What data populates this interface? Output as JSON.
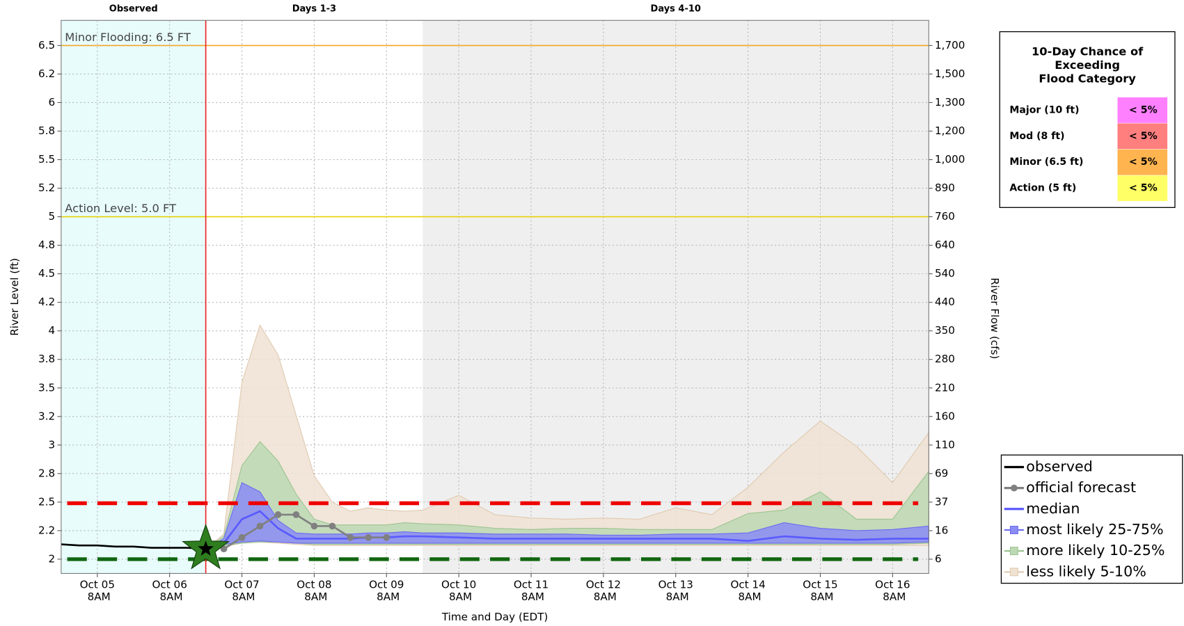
{
  "chart_data": {
    "type": "hydrograph",
    "xlabel": "Time and Day (EDT)",
    "ylabel": "River Level (ft)",
    "y2label": "River Flow (cfs)",
    "xlim": [
      "Oct 04 8PM",
      "Oct 16 8PM"
    ],
    "xticks": [
      "Oct 05 8AM",
      "Oct 06 8AM",
      "Oct 07 8AM",
      "Oct 08 8AM",
      "Oct 09 8AM",
      "Oct 10 8AM",
      "Oct 11 8AM",
      "Oct 12 8AM",
      "Oct 13 8AM",
      "Oct 14 8AM",
      "Oct 15 8AM",
      "Oct 16 8AM"
    ],
    "ylim": [
      1.875,
      6.72
    ],
    "yticks": [
      2.0,
      {
        "value": 2.25,
        "label": "2.2"
      },
      2.5,
      {
        "value": 2.75,
        "label": "2.8"
      },
      3.0,
      {
        "value": 3.25,
        "label": "3.2"
      },
      3.5,
      {
        "value": 3.75,
        "label": "3.8"
      },
      4.0,
      {
        "value": 4.25,
        "label": "4.2"
      },
      4.5,
      {
        "value": 4.75,
        "label": "4.8"
      },
      5.0,
      {
        "value": 5.25,
        "label": "5.2"
      },
      5.5,
      {
        "value": 5.75,
        "label": "5.8"
      },
      6.0,
      {
        "value": 6.25,
        "label": "6.2"
      },
      6.5
    ],
    "y2ticks": [
      6,
      16,
      37,
      69,
      110,
      160,
      210,
      280,
      350,
      440,
      540,
      640,
      760,
      890,
      {
        "value": 1000,
        "label": "1,000"
      },
      {
        "value": 1200,
        "label": "1,200"
      },
      {
        "value": 1300,
        "label": "1,300"
      },
      {
        "value": 1500,
        "label": "1,500"
      },
      {
        "value": 1700,
        "label": "1,700"
      }
    ],
    "grid": true,
    "regions": [
      {
        "label": "Observed",
        "start": "Oct 04 8PM",
        "end": "Oct 06 8PM",
        "color": "#e8fcfc"
      },
      {
        "label": "Days 1-3",
        "start": "Oct 06 8PM",
        "end": "Oct 09 8PM",
        "color": "#ffffff"
      },
      {
        "label": "Days 4-10",
        "start": "Oct 09 8PM",
        "end": "Oct 16 8PM",
        "color": "#efefef"
      }
    ],
    "flood_lines": [
      {
        "label": "Minor Flooding: 6.5 FT",
        "value": 6.5,
        "color": "#f5a623"
      },
      {
        "label": "Action Level: 5.0 FT",
        "value": 5.0,
        "color": "#e8d200"
      }
    ],
    "reference_lines": [
      {
        "value": 2.49,
        "color": "#ee0000"
      },
      {
        "value": 2.0,
        "color": "#116611"
      }
    ],
    "forecast_issued": {
      "x": "Oct 06 8PM",
      "value": 2.09,
      "color": "#2e7d1e"
    },
    "series": [
      {
        "name": "less likely 5-10%",
        "type": "band",
        "color": "#efe2d2",
        "edge": "#e0c9b0",
        "x": [
          "Oct 06 8PM",
          "Oct 07 2AM",
          "Oct 07 8AM",
          "Oct 07 2PM",
          "Oct 07 8PM",
          "Oct 08 2AM",
          "Oct 08 8AM",
          "Oct 08 2PM",
          "Oct 08 8PM",
          "Oct 09 2AM",
          "Oct 09 8AM",
          "Oct 09 2PM",
          "Oct 09 8PM",
          "Oct 10 8AM",
          "Oct 10 8PM",
          "Oct 11 8AM",
          "Oct 11 8PM",
          "Oct 12 8AM",
          "Oct 12 8PM",
          "Oct 13 8AM",
          "Oct 13 8PM",
          "Oct 14 8AM",
          "Oct 14 8PM",
          "Oct 15 8AM",
          "Oct 15 8PM",
          "Oct 16 8AM",
          "Oct 16 8PM"
        ],
        "high": [
          2.09,
          2.22,
          3.55,
          4.05,
          3.79,
          3.26,
          2.73,
          2.5,
          2.42,
          2.45,
          2.43,
          2.42,
          2.43,
          2.56,
          2.39,
          2.36,
          2.35,
          2.36,
          2.35,
          2.45,
          2.39,
          2.63,
          2.94,
          3.21,
          2.99,
          2.67,
          3.11
        ],
        "low": [
          2.09,
          2.11,
          2.14,
          2.15,
          2.14,
          2.13,
          2.12,
          2.12,
          2.12,
          2.12,
          2.12,
          2.12,
          2.12,
          2.12,
          2.12,
          2.12,
          2.12,
          2.12,
          2.12,
          2.12,
          2.12,
          2.12,
          2.12,
          2.12,
          2.12,
          2.12,
          2.12
        ]
      },
      {
        "name": "more likely 10-25%",
        "type": "band",
        "color": "#bcd8b4",
        "edge": "#9cc490",
        "x": [
          "Oct 06 8PM",
          "Oct 07 2AM",
          "Oct 07 8AM",
          "Oct 07 2PM",
          "Oct 07 8PM",
          "Oct 08 2AM",
          "Oct 08 8AM",
          "Oct 08 2PM",
          "Oct 08 8PM",
          "Oct 09 2AM",
          "Oct 09 8AM",
          "Oct 09 2PM",
          "Oct 09 8PM",
          "Oct 10 8AM",
          "Oct 10 8PM",
          "Oct 11 8AM",
          "Oct 11 8PM",
          "Oct 12 8AM",
          "Oct 12 8PM",
          "Oct 13 8AM",
          "Oct 13 8PM",
          "Oct 14 8AM",
          "Oct 14 8PM",
          "Oct 15 8AM",
          "Oct 15 8PM",
          "Oct 16 8AM",
          "Oct 16 8PM"
        ],
        "high": [
          2.09,
          2.2,
          2.82,
          3.03,
          2.86,
          2.57,
          2.35,
          2.3,
          2.3,
          2.3,
          2.3,
          2.32,
          2.31,
          2.3,
          2.27,
          2.26,
          2.27,
          2.27,
          2.26,
          2.26,
          2.26,
          2.4,
          2.43,
          2.59,
          2.35,
          2.35,
          2.77
        ],
        "low": [
          2.09,
          2.12,
          2.14,
          2.15,
          2.15,
          2.14,
          2.13,
          2.13,
          2.13,
          2.13,
          2.13,
          2.13,
          2.13,
          2.13,
          2.13,
          2.13,
          2.13,
          2.13,
          2.13,
          2.13,
          2.13,
          2.13,
          2.13,
          2.13,
          2.13,
          2.13,
          2.14
        ]
      },
      {
        "name": "most likely 25-75%",
        "type": "band",
        "color": "#8c8cf5",
        "edge": "#6a6af0",
        "x": [
          "Oct 06 8PM",
          "Oct 07 2AM",
          "Oct 07 8AM",
          "Oct 07 2PM",
          "Oct 07 8PM",
          "Oct 08 2AM",
          "Oct 08 8AM",
          "Oct 08 2PM",
          "Oct 08 8PM",
          "Oct 09 2AM",
          "Oct 09 8AM",
          "Oct 09 2PM",
          "Oct 09 8PM",
          "Oct 10 8AM",
          "Oct 10 8PM",
          "Oct 11 8AM",
          "Oct 11 8PM",
          "Oct 12 8AM",
          "Oct 12 8PM",
          "Oct 13 8AM",
          "Oct 13 8PM",
          "Oct 14 8AM",
          "Oct 14 8PM",
          "Oct 15 8AM",
          "Oct 15 8PM",
          "Oct 16 8AM",
          "Oct 16 8PM"
        ],
        "high": [
          2.09,
          2.18,
          2.67,
          2.59,
          2.34,
          2.23,
          2.22,
          2.22,
          2.22,
          2.23,
          2.23,
          2.24,
          2.23,
          2.23,
          2.22,
          2.22,
          2.22,
          2.21,
          2.21,
          2.22,
          2.22,
          2.23,
          2.32,
          2.27,
          2.25,
          2.26,
          2.29
        ],
        "low": [
          2.09,
          2.13,
          2.15,
          2.16,
          2.15,
          2.14,
          2.14,
          2.14,
          2.14,
          2.14,
          2.14,
          2.14,
          2.14,
          2.14,
          2.14,
          2.14,
          2.14,
          2.14,
          2.14,
          2.14,
          2.14,
          2.14,
          2.14,
          2.14,
          2.14,
          2.14,
          2.15
        ]
      },
      {
        "name": "median",
        "type": "line",
        "color": "#5a5aff",
        "x": [
          "Oct 06 8PM",
          "Oct 07 2AM",
          "Oct 07 8AM",
          "Oct 07 2PM",
          "Oct 07 8PM",
          "Oct 08 2AM",
          "Oct 08 8AM",
          "Oct 08 2PM",
          "Oct 08 8PM",
          "Oct 09 2AM",
          "Oct 09 8AM",
          "Oct 09 2PM",
          "Oct 09 8PM",
          "Oct 10 8AM",
          "Oct 10 8PM",
          "Oct 11 8AM",
          "Oct 11 8PM",
          "Oct 12 8AM",
          "Oct 12 8PM",
          "Oct 13 8AM",
          "Oct 13 8PM",
          "Oct 14 8AM",
          "Oct 14 8PM",
          "Oct 15 8AM",
          "Oct 15 8PM",
          "Oct 16 8AM",
          "Oct 16 8PM"
        ],
        "values": [
          2.09,
          2.14,
          2.35,
          2.42,
          2.27,
          2.18,
          2.18,
          2.18,
          2.18,
          2.19,
          2.19,
          2.2,
          2.2,
          2.19,
          2.18,
          2.18,
          2.18,
          2.18,
          2.18,
          2.18,
          2.18,
          2.16,
          2.2,
          2.18,
          2.17,
          2.18,
          2.18
        ]
      },
      {
        "name": "observed",
        "type": "line",
        "color": "#000000",
        "x": [
          "Oct 04 8PM",
          "Oct 05 2AM",
          "Oct 05 8AM",
          "Oct 05 2PM",
          "Oct 05 8PM",
          "Oct 06 2AM",
          "Oct 06 8AM",
          "Oct 06 2PM",
          "Oct 06 8PM"
        ],
        "values": [
          2.13,
          2.12,
          2.12,
          2.11,
          2.11,
          2.1,
          2.1,
          2.1,
          2.09
        ]
      },
      {
        "name": "official forecast",
        "type": "points",
        "color": "#808080",
        "x": [
          "Oct 07 2AM",
          "Oct 07 8AM",
          "Oct 07 2PM",
          "Oct 07 8PM",
          "Oct 08 2AM",
          "Oct 08 8AM",
          "Oct 08 2PM",
          "Oct 08 8PM",
          "Oct 09 2AM",
          "Oct 09 8AM"
        ],
        "values": [
          2.09,
          2.19,
          2.29,
          2.39,
          2.39,
          2.29,
          2.29,
          2.19,
          2.19,
          2.19
        ]
      }
    ],
    "legend_order": [
      4,
      5,
      3,
      2,
      1,
      0
    ],
    "flood_table": {
      "title_lines": [
        "10-Day Chance of",
        "Exceeding",
        "Flood Category"
      ],
      "rows": [
        {
          "label": "Major (10 ft)",
          "chance": "< 5%",
          "color": "#ff80ff"
        },
        {
          "label": "Mod (8 ft)",
          "chance": "< 5%",
          "color": "#ff7f7f"
        },
        {
          "label": "Minor (6.5 ft)",
          "chance": "< 5%",
          "color": "#ffb450"
        },
        {
          "label": "Action (5 ft)",
          "chance": "< 5%",
          "color": "#ffff66"
        }
      ]
    }
  }
}
